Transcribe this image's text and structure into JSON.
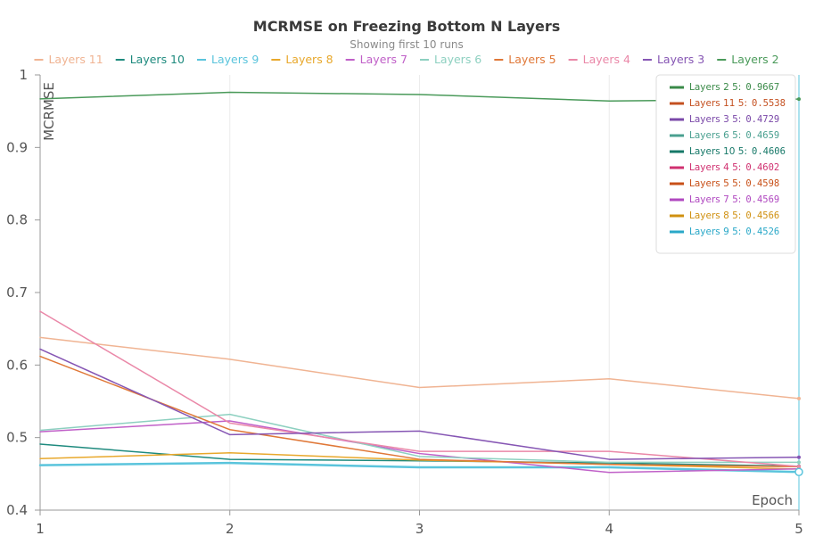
{
  "chart_data": {
    "type": "line",
    "title": "MCRMSE on Freezing Bottom N Layers",
    "subtitle": "Showing first 10 runs",
    "xlabel": "Epoch",
    "ylabel": "MCRMSE",
    "x": [
      1,
      2,
      3,
      4,
      5
    ],
    "xlim": [
      1,
      5
    ],
    "ylim": [
      0.4,
      1.0
    ],
    "x_ticks": [
      "1",
      "2",
      "3",
      "4",
      "5"
    ],
    "y_ticks": [
      "0.4",
      "0.5",
      "0.6",
      "0.7",
      "0.8",
      "0.9",
      "1"
    ],
    "y_tick_values": [
      0.4,
      0.5,
      0.6,
      0.7,
      0.8,
      0.9,
      1.0
    ],
    "grid": "vertical",
    "legend_position": "top",
    "hover_x": 5,
    "series": [
      {
        "name": "Layers 11",
        "color": "#f0b493",
        "values": [
          0.638,
          0.608,
          0.569,
          0.581,
          0.5538
        ]
      },
      {
        "name": "Layers 10",
        "color": "#1e8a7e",
        "values": [
          0.491,
          0.47,
          0.468,
          0.465,
          0.4606
        ]
      },
      {
        "name": "Layers 9",
        "color": "#5ac4dc",
        "values": [
          0.462,
          0.465,
          0.459,
          0.459,
          0.4526
        ]
      },
      {
        "name": "Layers 8",
        "color": "#e8a82c",
        "values": [
          0.471,
          0.479,
          0.469,
          0.463,
          0.4566
        ]
      },
      {
        "name": "Layers 7",
        "color": "#c060c8",
        "values": [
          0.508,
          0.523,
          0.478,
          0.452,
          0.4569
        ]
      },
      {
        "name": "Layers 6",
        "color": "#8dd0c0",
        "values": [
          0.51,
          0.532,
          0.474,
          0.466,
          0.4659
        ]
      },
      {
        "name": "Layers 5",
        "color": "#e07838",
        "values": [
          0.612,
          0.511,
          0.47,
          0.463,
          0.4598
        ]
      },
      {
        "name": "Layers 4",
        "color": "#ea88a8",
        "values": [
          0.674,
          0.52,
          0.481,
          0.481,
          0.4602
        ]
      },
      {
        "name": "Layers 3",
        "color": "#8656b4",
        "values": [
          0.622,
          0.504,
          0.509,
          0.47,
          0.4729
        ]
      },
      {
        "name": "Layers 2",
        "color": "#4a9a5a",
        "values": [
          0.967,
          0.976,
          0.973,
          0.964,
          0.9667
        ]
      }
    ],
    "tooltip": [
      {
        "name": "Layers 2",
        "step": "5",
        "value": "0.9667",
        "line_color": "#3a8a48",
        "text_color": "#3a8a48"
      },
      {
        "name": "Layers 11",
        "step": "5",
        "value": "0.5538",
        "line_color": "#c45020",
        "text_color": "#c45020"
      },
      {
        "name": "Layers 3",
        "step": "5",
        "value": "0.4729",
        "line_color": "#7a48a8",
        "text_color": "#7a48a8"
      },
      {
        "name": "Layers 6",
        "step": "5",
        "value": "0.4659",
        "line_color": "#4aa090",
        "text_color": "#4aa090"
      },
      {
        "name": "Layers 10",
        "step": "5",
        "value": "0.4606",
        "line_color": "#167868",
        "text_color": "#167868"
      },
      {
        "name": "Layers 4",
        "step": "5",
        "value": "0.4602",
        "line_color": "#d03070",
        "text_color": "#d03070"
      },
      {
        "name": "Layers 5",
        "step": "5",
        "value": "0.4598",
        "line_color": "#c85018",
        "text_color": "#c85018"
      },
      {
        "name": "Layers 7",
        "step": "5",
        "value": "0.4569",
        "line_color": "#b048c0",
        "text_color": "#b048c0"
      },
      {
        "name": "Layers 8",
        "step": "5",
        "value": "0.4566",
        "line_color": "#d09010",
        "text_color": "#d09010"
      },
      {
        "name": "Layers 9",
        "step": "5",
        "value": "0.4526",
        "line_color": "#2aa8c8",
        "text_color": "#2aa8c8"
      }
    ]
  }
}
